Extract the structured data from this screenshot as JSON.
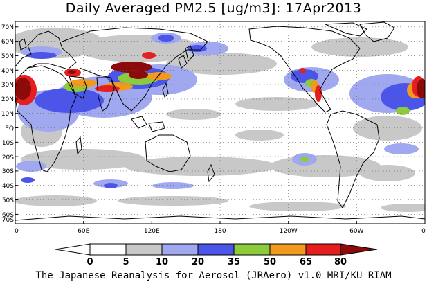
{
  "title": "Daily Averaged PM2.5 [ug/m3]: 17Apr2013",
  "credit": "The Japanese Reanalysis for Aerosol (JRAero) v1.0 MRI/KU_RIAM",
  "axes": {
    "lat_labels": [
      "70N",
      "60N",
      "50N",
      "40N",
      "30N",
      "20N",
      "10N",
      "EQ",
      "10S",
      "20S",
      "30S",
      "40S",
      "50S",
      "60S",
      "70S"
    ],
    "lon_labels": [
      "0",
      "60E",
      "120E",
      "180",
      "120W",
      "60W",
      "0"
    ]
  },
  "colorbar": {
    "labels": [
      "0",
      "5",
      "10",
      "20",
      "35",
      "50",
      "65",
      "80"
    ],
    "colors": [
      "#ffffff",
      "#c8c8c8",
      "#a0a8f0",
      "#4b55ea",
      "#8ccc3c",
      "#f09a1e",
      "#e61e1e",
      "#8c0a0a"
    ]
  },
  "regions": [
    {
      "name": "sahara",
      "level": "extreme"
    },
    {
      "name": "arabia-india",
      "level": "high"
    },
    {
      "name": "taklamakan-gobi",
      "level": "extreme"
    },
    {
      "name": "china-plume",
      "level": "moderate"
    },
    {
      "name": "mexico",
      "level": "high"
    },
    {
      "name": "us-east",
      "level": "moderate"
    },
    {
      "name": "north-atlantic-dust",
      "level": "extreme"
    }
  ]
}
